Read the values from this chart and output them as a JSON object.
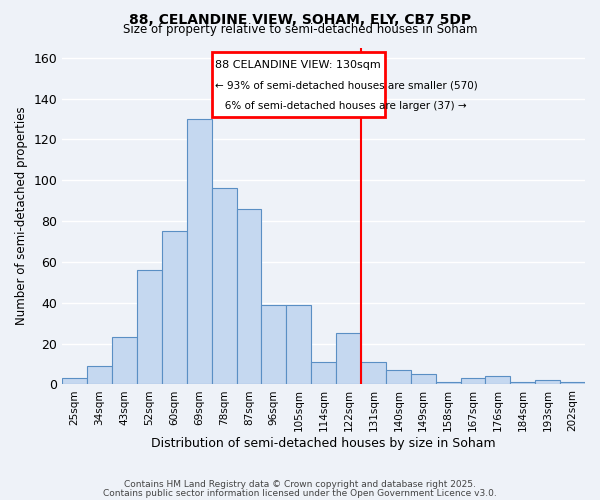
{
  "title": "88, CELANDINE VIEW, SOHAM, ELY, CB7 5DP",
  "subtitle": "Size of property relative to semi-detached houses in Soham",
  "xlabel": "Distribution of semi-detached houses by size in Soham",
  "ylabel": "Number of semi-detached properties",
  "bin_labels": [
    "25sqm",
    "34sqm",
    "43sqm",
    "52sqm",
    "60sqm",
    "69sqm",
    "78sqm",
    "87sqm",
    "96sqm",
    "105sqm",
    "114sqm",
    "122sqm",
    "131sqm",
    "140sqm",
    "149sqm",
    "158sqm",
    "167sqm",
    "176sqm",
    "184sqm",
    "193sqm",
    "202sqm"
  ],
  "bar_heights": [
    3,
    9,
    23,
    56,
    75,
    130,
    96,
    86,
    39,
    39,
    11,
    25,
    11,
    7,
    5,
    1,
    3,
    4,
    1,
    2,
    1
  ],
  "bar_color": "#c5d8f0",
  "bar_edge_color": "#5a8fc4",
  "vline_bin_index": 12,
  "vline_color": "red",
  "annotation_title": "88 CELANDINE VIEW: 130sqm",
  "annotation_line1": "← 93% of semi-detached houses are smaller (570)",
  "annotation_line2": "   6% of semi-detached houses are larger (37) →",
  "box_edge_color": "red",
  "ylim": [
    0,
    165
  ],
  "background_color": "#eef2f8",
  "grid_color": "white",
  "footer1": "Contains HM Land Registry data © Crown copyright and database right 2025.",
  "footer2": "Contains public sector information licensed under the Open Government Licence v3.0."
}
